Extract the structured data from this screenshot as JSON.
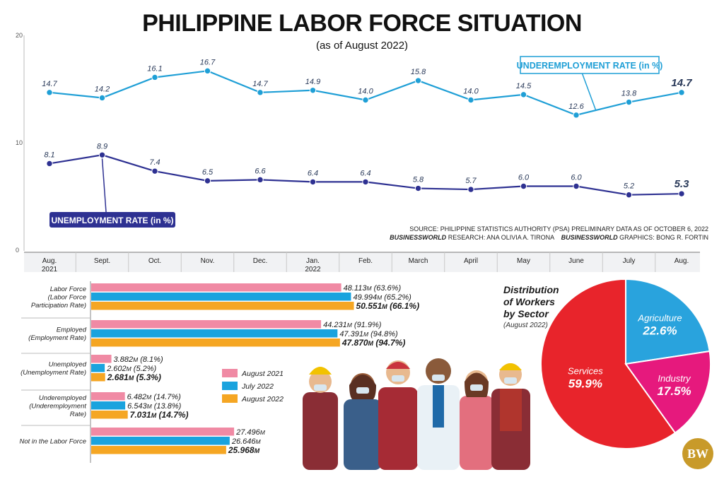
{
  "title": "PHILIPPINE LABOR FORCE SITUATION",
  "subtitle": "(as of August 2022)",
  "colors": {
    "underemployment": "#1f9fd6",
    "unemployment": "#2e3192",
    "aug2021": "#f08aa4",
    "jul2022": "#1aa3de",
    "aug2022": "#f5a623",
    "services": "#e8242b",
    "agriculture": "#29a3dd",
    "industry": "#e6197d"
  },
  "source": {
    "line1": "SOURCE: PHILIPPINE STATISTICS AUTHORITY (PSA) PRELIMINARY DATA AS OF OCTOBER 6, 2022",
    "research_label": "BUSINESSWORLD",
    "research_text": "RESEARCH: ANA OLIVIA A. TIRONA",
    "graphics_label": "BUSINESSWORLD",
    "graphics_text": "GRAPHICS: BONG R. FORTIN"
  },
  "logo_text": "BW",
  "chart_data": [
    {
      "type": "line",
      "y_ticks": [
        "20",
        "10",
        "0"
      ],
      "ylim": [
        0,
        20
      ],
      "categories": [
        "Aug.",
        "Sept.",
        "Oct.",
        "Nov.",
        "Dec.",
        "Jan.",
        "Feb.",
        "March",
        "April",
        "May",
        "June",
        "July",
        "Aug."
      ],
      "category_sublabels": [
        "2021",
        "",
        "",
        "",
        "",
        "2022",
        "",
        "",
        "",
        "",
        "",
        "",
        ""
      ],
      "series": [
        {
          "name": "UNDEREMPLOYMENT RATE (in %)",
          "values": [
            14.7,
            14.2,
            16.1,
            16.7,
            14.7,
            14.9,
            14.0,
            15.8,
            14.0,
            14.5,
            12.6,
            13.8,
            14.7
          ],
          "labels": [
            "14.7",
            "14.2",
            "16.1",
            "16.7",
            "14.7",
            "14.9",
            "14.0",
            "15.8",
            "14.0",
            "14.5",
            "12.6",
            "13.8",
            "14.7"
          ]
        },
        {
          "name": "UNEMPLOYMENT RATE (in %)",
          "values": [
            8.1,
            8.9,
            7.4,
            6.5,
            6.6,
            6.4,
            6.4,
            5.8,
            5.7,
            6.0,
            6.0,
            5.2,
            5.3
          ],
          "labels": [
            "8.1",
            "8.9",
            "7.4",
            "6.5",
            "6.6",
            "6.4",
            "6.4",
            "5.8",
            "5.7",
            "6.0",
            "6.0",
            "5.2",
            "5.3"
          ]
        }
      ]
    },
    {
      "type": "bar",
      "orientation": "horizontal",
      "categories": [
        [
          "Labor Force",
          "(Labor Force",
          "Participation Rate)"
        ],
        [
          "Employed",
          "(Employment Rate)"
        ],
        [
          "Unemployed",
          "(Unemployment Rate)"
        ],
        [
          "Underemployed",
          "(Underemployment",
          "Rate)"
        ],
        [
          "Not in the Labor Force"
        ]
      ],
      "legend": [
        "August 2021",
        "July 2022",
        "August 2022"
      ],
      "unit": "M",
      "series": [
        {
          "name": "August 2021",
          "values": [
            48.113,
            44.231,
            3.882,
            6.482,
            27.496
          ],
          "labels": [
            "48.113",
            "44.231",
            "3.882",
            "6.482",
            "27.496"
          ],
          "rates": [
            "(63.6%)",
            "(91.9%)",
            "(8.1%)",
            "(14.7%)",
            ""
          ]
        },
        {
          "name": "July 2022",
          "values": [
            49.994,
            47.391,
            2.602,
            6.543,
            26.646
          ],
          "labels": [
            "49.994",
            "47.391",
            "2.602",
            "6.543",
            "26.646"
          ],
          "rates": [
            "(65.2%)",
            "(94.8%)",
            "(5.2%)",
            "(13.8%)",
            ""
          ]
        },
        {
          "name": "August 2022",
          "values": [
            50.551,
            47.87,
            2.681,
            7.031,
            25.968
          ],
          "labels": [
            "50.551",
            "47.870",
            "2.681",
            "7.031",
            "25.968"
          ],
          "rates": [
            "(66.1%)",
            "(94.7%)",
            "(5.3%)",
            "(14.7%)",
            ""
          ]
        }
      ]
    },
    {
      "type": "pie",
      "title": [
        "Distribution",
        "of Workers",
        "by Sector"
      ],
      "subtitle": "(August 2022)",
      "slices": [
        {
          "name": "Services",
          "value": 59.9,
          "label": "59.9%"
        },
        {
          "name": "Agriculture",
          "value": 22.6,
          "label": "22.6%"
        },
        {
          "name": "Industry",
          "value": 17.5,
          "label": "17.5%"
        }
      ]
    }
  ]
}
